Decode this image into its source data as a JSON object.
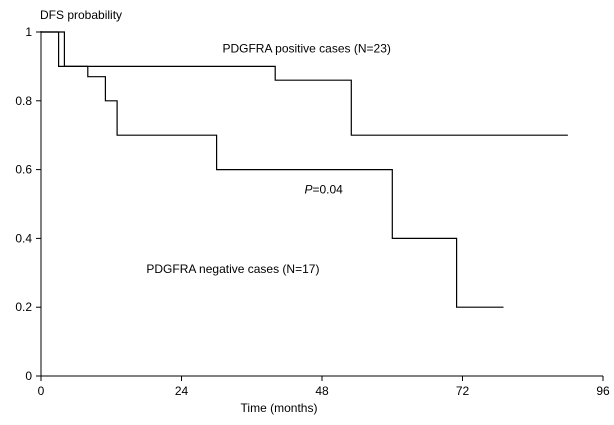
{
  "chart_data": {
    "type": "line",
    "step": true,
    "ylabel": "DFS probability",
    "xlabel": "Time (months)",
    "xlim": [
      0,
      96
    ],
    "ylim": [
      0,
      1
    ],
    "xticks": [
      0,
      24,
      48,
      72,
      96
    ],
    "yticks": [
      {
        "value": 0,
        "label": "0"
      },
      {
        "value": 0.2,
        "label": "0.2"
      },
      {
        "value": 0.4,
        "label": "0.4"
      },
      {
        "value": 0.6,
        "label": "0.6"
      },
      {
        "value": 0.8,
        "label": "0.8"
      },
      {
        "value": 1,
        "label": "1"
      }
    ],
    "grid": false,
    "series": [
      {
        "name": "PDGFRA positive cases (N=23)",
        "points": [
          [
            0,
            1.0
          ],
          [
            4,
            1.0
          ],
          [
            4,
            0.9
          ],
          [
            40,
            0.9
          ],
          [
            40,
            0.86
          ],
          [
            53,
            0.86
          ],
          [
            53,
            0.7
          ],
          [
            90,
            0.7
          ]
        ],
        "label_at": [
          31,
          0.94
        ]
      },
      {
        "name": "PDGFRA negative cases (N=17)",
        "points": [
          [
            0,
            1.0
          ],
          [
            3,
            1.0
          ],
          [
            3,
            0.9
          ],
          [
            8,
            0.9
          ],
          [
            8,
            0.87
          ],
          [
            11,
            0.87
          ],
          [
            11,
            0.8
          ],
          [
            13,
            0.8
          ],
          [
            13,
            0.7
          ],
          [
            30,
            0.7
          ],
          [
            30,
            0.6
          ],
          [
            60,
            0.6
          ],
          [
            60,
            0.4
          ],
          [
            71,
            0.4
          ],
          [
            71,
            0.2
          ],
          [
            79,
            0.2
          ]
        ],
        "label_at": [
          18,
          0.3
        ]
      }
    ],
    "annotation": {
      "italic": "P",
      "text": "=0.04",
      "at": [
        45,
        0.53
      ]
    }
  }
}
